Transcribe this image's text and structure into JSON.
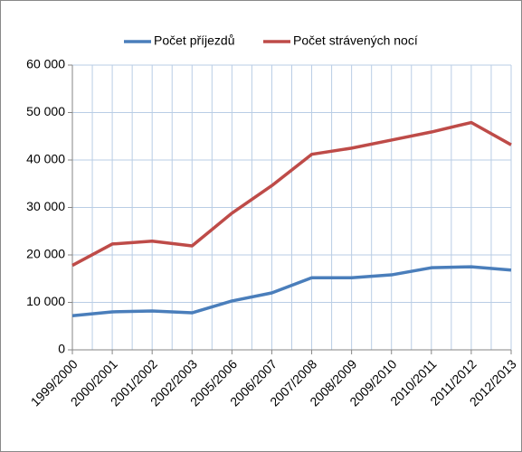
{
  "chart_data": {
    "type": "line",
    "categories": [
      "1999/2000",
      "2000/2001",
      "2001/2002",
      "2002/2003",
      "2005/2006",
      "2006/2007",
      "2007/2008",
      "2008/2009",
      "2009/2010",
      "2010/2011",
      "2011/2012",
      "2012/2013"
    ],
    "series": [
      {
        "name": "Počet příjezdů",
        "color": "#4a7ebb",
        "values": [
          7200,
          8000,
          8200,
          7800,
          10300,
          12000,
          15200,
          15200,
          15800,
          17300,
          17500,
          16800
        ]
      },
      {
        "name": "Počet strávených nocí",
        "color": "#be4b48",
        "values": [
          17800,
          22300,
          22900,
          21900,
          28800,
          34600,
          41200,
          42500,
          44200,
          45900,
          47900,
          43200
        ]
      }
    ],
    "ylim": [
      0,
      60000
    ],
    "yticks": [
      0,
      {
        "value": 10000,
        "label": "10 000"
      },
      {
        "value": 20000,
        "label": "20 000"
      },
      {
        "value": 30000,
        "label": "30 000"
      },
      {
        "value": 40000,
        "label": "40 000"
      },
      {
        "value": 50000,
        "label": "50 000"
      },
      {
        "value": 60000,
        "label": "60 000"
      }
    ],
    "grid": true,
    "legend": "top"
  }
}
